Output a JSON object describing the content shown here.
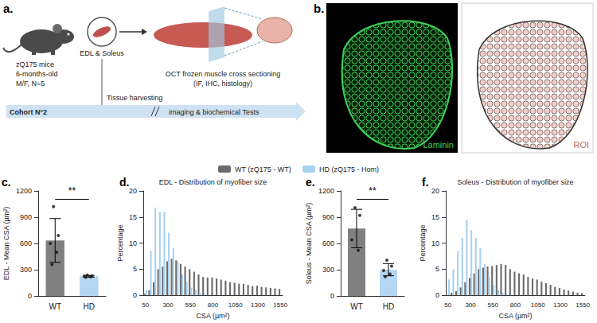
{
  "panel_a": {
    "letter": "a.",
    "texts": {
      "mice": "zQ175 mice",
      "age": "6-months-old",
      "group": "M/F, N=5",
      "muscles": "EDL & Soleus",
      "method": "OCT frozen muscle cross sectioning",
      "assays": "(IF, IHC, histology)",
      "cohort": "Cohort N°2",
      "harvest": "Tissue harvesting",
      "tests": "imaging & biochemical Tests"
    }
  },
  "panel_b": {
    "letter": "b.",
    "images": [
      "Laminin",
      "ROI"
    ]
  },
  "chart_data": [
    {
      "letter": "c.",
      "type": "bar",
      "ylabel": "EDL - Mean CSA (µm²)",
      "categories": [
        "WT",
        "HD"
      ],
      "values": [
        634,
        225
      ],
      "errors": [
        250,
        10
      ],
      "points": [
        [
          1020,
          690,
          600,
          500,
          360
        ],
        [
          238,
          230,
          225,
          218,
          214
        ]
      ],
      "colors": [
        "#808080",
        "#b5d6f2"
      ],
      "annotation": "**",
      "ylim": [
        0,
        1200
      ],
      "yticks": [
        0,
        300,
        600,
        900,
        1200
      ]
    },
    {
      "letter": "d.",
      "type": "bar",
      "title": "EDL - Distribution of myofiber size",
      "xlabel": "CSA (µm²)",
      "ylabel": "Percentage",
      "categories": [
        "50",
        null,
        null,
        null,
        null,
        "300",
        null,
        null,
        null,
        null,
        "550",
        null,
        null,
        null,
        null,
        "800",
        null,
        null,
        null,
        null,
        "1050",
        null,
        null,
        null,
        null,
        "1300",
        null,
        null,
        null,
        null,
        "1550"
      ],
      "series": [
        {
          "name": "WT (zQ175 - WT)",
          "color": "#6b6b6b",
          "values": [
            0.3,
            1.0,
            2.5,
            5.0,
            5.5,
            6.5,
            7.0,
            6.7,
            6.0,
            5.5,
            5.0,
            4.5,
            4.0,
            3.5,
            3.4,
            3.4,
            3.2,
            3.0,
            2.8,
            2.5,
            2.4,
            2.2,
            2.2,
            2.0,
            1.8,
            1.8,
            1.6,
            1.5,
            1.4,
            1.3,
            1.2
          ]
        },
        {
          "name": "HD (zQ175 - Hom)",
          "color": "#a9d1f0",
          "values": [
            1.0,
            8.5,
            16.8,
            16.0,
            16.0,
            12.0,
            9.0,
            6.5,
            4.0,
            2.5,
            1.5,
            1.0,
            0.5,
            0.3,
            0,
            0,
            0,
            0,
            0,
            0,
            0,
            0,
            0,
            0,
            0,
            0,
            0,
            0,
            0,
            0,
            0
          ]
        }
      ],
      "legend": "top",
      "ylim": [
        0,
        20
      ],
      "yticks": [
        0,
        5,
        10,
        15,
        20
      ]
    },
    {
      "letter": "e.",
      "type": "bar",
      "ylabel": "Soleus - Mean CSA (µm²)",
      "categories": [
        "WT",
        "HD"
      ],
      "values": [
        770,
        300
      ],
      "errors": [
        220,
        70
      ],
      "points": [
        [
          1010,
          920,
          640,
          520
        ],
        [
          410,
          340,
          290,
          250,
          220
        ]
      ],
      "colors": [
        "#808080",
        "#b5d6f2"
      ],
      "annotation": "**",
      "ylim": [
        0,
        1200
      ],
      "yticks": [
        0,
        300,
        600,
        900,
        1200
      ]
    },
    {
      "letter": "f.",
      "type": "bar",
      "title": "Soleus - Distribution of myofiber size",
      "xlabel": "CSA (µm²)",
      "ylabel": "Percentage",
      "categories": [
        "50",
        null,
        null,
        null,
        null,
        "300",
        null,
        null,
        null,
        null,
        "550",
        null,
        null,
        null,
        null,
        "800",
        null,
        null,
        null,
        null,
        "1050",
        null,
        null,
        null,
        null,
        "1300",
        null,
        null,
        null,
        null,
        "1550"
      ],
      "series": [
        {
          "name": "WT (zQ175 - WT)",
          "color": "#6b6b6b",
          "values": [
            0,
            0.5,
            0.8,
            1.5,
            2.5,
            3.3,
            4.2,
            5.0,
            5.3,
            5.5,
            5.6,
            5.8,
            6.0,
            5.8,
            5.0,
            4.5,
            4.2,
            4.0,
            3.5,
            3.2,
            3.0,
            2.6,
            2.3,
            2.0,
            1.6,
            1.4,
            1.1,
            0.9,
            0.7,
            0.5,
            0.4
          ]
        },
        {
          "name": "HD (zQ175 - Hom)",
          "color": "#a9d1f0",
          "values": [
            3.0,
            5.0,
            8.5,
            11.0,
            14.5,
            12.5,
            11.0,
            9.0,
            6.0,
            3.5,
            2.0,
            1.0,
            0.5,
            0,
            0,
            0,
            0,
            0,
            0,
            0,
            0,
            0,
            0,
            0,
            0,
            0,
            0,
            0,
            0,
            0,
            0
          ]
        }
      ],
      "ylim": [
        0,
        20
      ],
      "yticks": [
        0,
        5,
        10,
        15,
        20
      ]
    }
  ]
}
